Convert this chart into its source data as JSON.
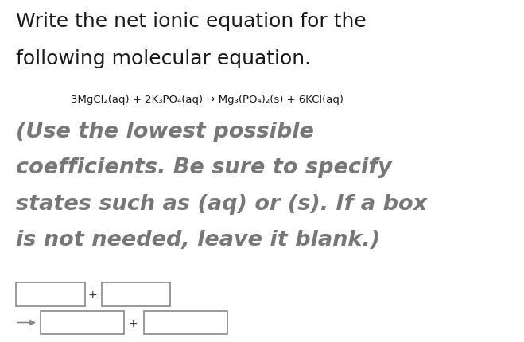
{
  "title_line1": "Write the net ionic equation for the",
  "title_line2": "following molecular equation.",
  "equation": "3MgCl₂(aq) + 2K₃PO₄(aq) → Mg₃(PO₄)₂(s) + 6KCl(aq)",
  "instruction_line1": "(Use the lowest possible",
  "instruction_line2": "coefficients. Be sure to specify",
  "instruction_line3": "states such as (aq) or (s). If a box",
  "instruction_line4": "is not needed, leave it blank.)",
  "bg_color": "#ffffff",
  "title_color": "#1a1a1a",
  "eq_color": "#1a1a1a",
  "instruction_color": "#777777",
  "box_edge_color": "#888888",
  "title_fontsize": 18,
  "eq_fontsize": 9.5,
  "instruction_fontsize": 19.5,
  "arrow_color": "#888888"
}
